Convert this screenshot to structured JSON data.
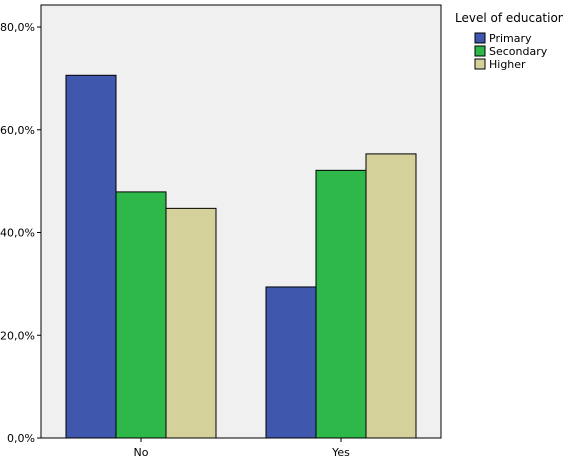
{
  "chart_data": {
    "type": "bar",
    "categories": [
      "No",
      "Yes"
    ],
    "series": [
      {
        "name": "Primary",
        "values": [
          70.6,
          29.4
        ],
        "color": "#3f58ae"
      },
      {
        "name": "Secondary",
        "values": [
          47.9,
          52.1
        ],
        "color": "#2fb84a"
      },
      {
        "name": "Higher",
        "values": [
          44.7,
          55.3
        ],
        "color": "#d5d19b"
      }
    ],
    "ylim": [
      0,
      80
    ],
    "yticks": [
      0,
      20,
      40,
      60,
      80
    ],
    "ytick_labels": [
      "0,0%",
      "20,0%",
      "40,0%",
      "60,0%",
      "80,0%"
    ],
    "legend_title": "Level of education",
    "legend_position": "top-right",
    "plot_background": "#f0f0f0",
    "grid": false
  }
}
